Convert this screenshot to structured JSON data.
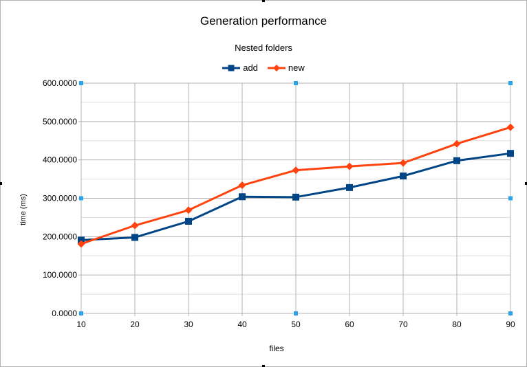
{
  "chart_data": {
    "type": "line",
    "title": "Generation performance",
    "subtitle": "Nested folders",
    "xlabel": "files",
    "ylabel": "time  (ms)",
    "x": [
      10,
      20,
      30,
      40,
      50,
      60,
      70,
      80,
      90
    ],
    "ylim": [
      0,
      600
    ],
    "yticks": [
      "0.0000",
      "100.0000",
      "200.0000",
      "300.0000",
      "400.0000",
      "500.0000",
      "600.0000"
    ],
    "grid": true,
    "legend_position": "top",
    "series": [
      {
        "name": "add",
        "marker": "square",
        "color": "#004586",
        "values": [
          191,
          198,
          240,
          304,
          303,
          328,
          358,
          398,
          417
        ]
      },
      {
        "name": "new",
        "marker": "diamond",
        "color": "#ff420e",
        "values": [
          181,
          229,
          269,
          334,
          373,
          383,
          392,
          442,
          485
        ]
      }
    ]
  }
}
